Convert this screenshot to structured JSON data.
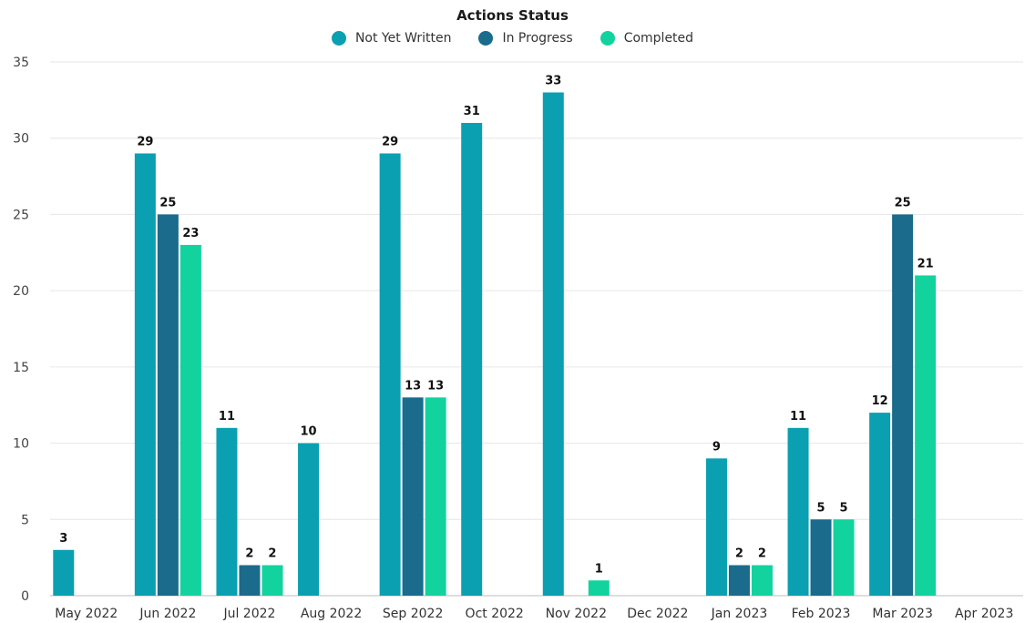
{
  "chart_data": {
    "type": "bar",
    "title": "Actions Status",
    "categories": [
      "May 2022",
      "Jun 2022",
      "Jul 2022",
      "Aug 2022",
      "Sep 2022",
      "Oct 2022",
      "Nov 2022",
      "Dec 2022",
      "Jan 2023",
      "Feb 2023",
      "Mar 2023",
      "Apr 2023"
    ],
    "series": [
      {
        "name": "Not Yet Written",
        "color": "#0aa0b1",
        "values": [
          3,
          29,
          11,
          10,
          29,
          31,
          33,
          null,
          9,
          11,
          12,
          null
        ]
      },
      {
        "name": "In Progress",
        "color": "#1a6b8c",
        "values": [
          null,
          25,
          2,
          null,
          13,
          null,
          null,
          null,
          2,
          5,
          25,
          null
        ]
      },
      {
        "name": "Completed",
        "color": "#12d39e",
        "values": [
          null,
          23,
          2,
          null,
          13,
          null,
          1,
          null,
          2,
          5,
          21,
          null
        ]
      }
    ],
    "ylim": [
      0,
      35
    ],
    "yticks": [
      0,
      5,
      10,
      15,
      20,
      25,
      30,
      35
    ],
    "xlabel": "",
    "ylabel": "",
    "grid": true,
    "legend_position": "top-center",
    "data_labels": true
  }
}
